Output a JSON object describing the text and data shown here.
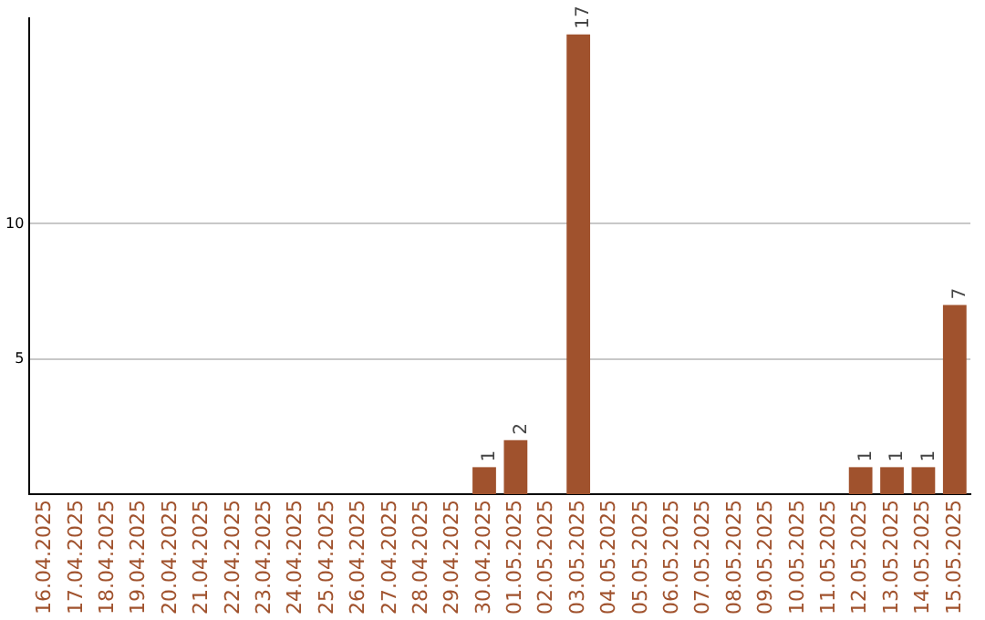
{
  "chart_data": {
    "type": "bar",
    "categories": [
      "16.04.2025",
      "17.04.2025",
      "18.04.2025",
      "19.04.2025",
      "20.04.2025",
      "21.04.2025",
      "22.04.2025",
      "23.04.2025",
      "24.04.2025",
      "25.04.2025",
      "26.04.2025",
      "27.04.2025",
      "28.04.2025",
      "29.04.2025",
      "30.04.2025",
      "01.05.2025",
      "02.05.2025",
      "03.05.2025",
      "04.05.2025",
      "05.05.2025",
      "06.05.2025",
      "07.05.2025",
      "08.05.2025",
      "09.05.2025",
      "10.05.2025",
      "11.05.2025",
      "12.05.2025",
      "13.05.2025",
      "14.05.2025",
      "15.05.2025"
    ],
    "values": [
      0,
      0,
      0,
      0,
      0,
      0,
      0,
      0,
      0,
      0,
      0,
      0,
      0,
      0,
      1,
      2,
      0,
      17,
      0,
      0,
      0,
      0,
      0,
      0,
      0,
      0,
      1,
      1,
      1,
      7
    ],
    "value_labels": [
      null,
      null,
      null,
      null,
      null,
      null,
      null,
      null,
      null,
      null,
      null,
      null,
      null,
      null,
      "1",
      "2",
      null,
      "17",
      null,
      null,
      null,
      null,
      null,
      null,
      null,
      null,
      "1",
      "1",
      "1",
      "7"
    ],
    "color": "#a0522d",
    "ylim": [
      0,
      17.6
    ],
    "yticks": [
      5,
      10
    ],
    "grid": "y",
    "legend": false
  }
}
